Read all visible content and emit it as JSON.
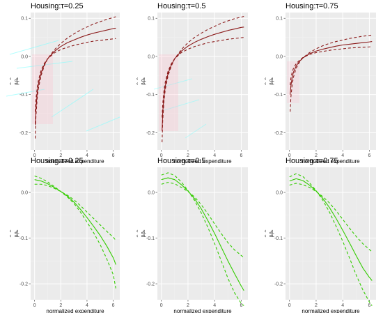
{
  "figure": {
    "x_axis_label": "normalized expenditure",
    "y_axis_label": "β̂_{k,τ}",
    "colors": {
      "panel_bg": "#ebebeb",
      "grid_major": "#ffffff",
      "grid_minor": "#f3f3f3",
      "dark_red": "#8b1a1a",
      "green": "#33cc00",
      "pink_smear": "#ffb6c8",
      "cyan_smear": "#7fffff"
    }
  },
  "chart_data": [
    {
      "type": "line",
      "title": "Housing:τ=0.25",
      "xlim": [
        -0.3,
        6.5
      ],
      "ylim": [
        -0.245,
        0.115
      ],
      "xticks": [
        0,
        2,
        4,
        6
      ],
      "yticks": [
        0.1,
        0.0,
        -0.1,
        -0.2
      ],
      "ytick_labels": [
        "0.1",
        "0.0",
        "-0.1",
        "-0.2"
      ],
      "color": "dark_red",
      "series": [
        {
          "style": "solid",
          "x": [
            0.05,
            0.1,
            0.2,
            0.3,
            0.5,
            0.75,
            1,
            1.5,
            2,
            2.5,
            3,
            3.5,
            4,
            4.5,
            5,
            5.5,
            6,
            6.2
          ],
          "values": [
            -0.18,
            -0.138,
            -0.096,
            -0.072,
            -0.043,
            -0.021,
            -0.006,
            0.013,
            0.026,
            0.036,
            0.043,
            0.05,
            0.056,
            0.061,
            0.065,
            0.069,
            0.073,
            0.074
          ]
        },
        {
          "style": "dashed",
          "x": [
            0.05,
            0.1,
            0.2,
            0.3,
            0.5,
            0.75,
            1,
            1.5,
            2,
            2.5,
            3,
            3.5,
            4,
            4.5,
            5,
            5.5,
            6,
            6.2
          ],
          "values": [
            -0.215,
            -0.16,
            -0.11,
            -0.082,
            -0.05,
            -0.024,
            -0.006,
            0.017,
            0.034,
            0.048,
            0.059,
            0.069,
            0.077,
            0.085,
            0.091,
            0.097,
            0.102,
            0.104
          ]
        },
        {
          "style": "dashed",
          "x": [
            0.05,
            0.1,
            0.2,
            0.3,
            0.5,
            0.75,
            1,
            1.5,
            2,
            2.5,
            3,
            3.5,
            4,
            4.5,
            5,
            5.5,
            6,
            6.2
          ],
          "values": [
            -0.145,
            -0.114,
            -0.082,
            -0.062,
            -0.036,
            -0.018,
            -0.006,
            0.009,
            0.018,
            0.024,
            0.029,
            0.033,
            0.037,
            0.04,
            0.042,
            0.044,
            0.046,
            0.047
          ]
        }
      ]
    },
    {
      "type": "line",
      "title": "Housing:τ=0.5",
      "xlim": [
        -0.3,
        6.5
      ],
      "ylim": [
        -0.245,
        0.115
      ],
      "xticks": [
        0,
        2,
        4,
        6
      ],
      "yticks": [
        0.1,
        0.0,
        -0.1,
        -0.2
      ],
      "ytick_labels": [
        "0.1",
        "0.0",
        "-0.1",
        "-0.2"
      ],
      "color": "dark_red",
      "series": [
        {
          "style": "solid",
          "x": [
            0.05,
            0.1,
            0.2,
            0.3,
            0.5,
            0.75,
            1,
            1.5,
            2,
            2.5,
            3,
            3.5,
            4,
            4.5,
            5,
            5.5,
            6,
            6.2
          ],
          "values": [
            -0.195,
            -0.148,
            -0.103,
            -0.076,
            -0.045,
            -0.022,
            -0.006,
            0.014,
            0.027,
            0.037,
            0.045,
            0.052,
            0.058,
            0.063,
            0.068,
            0.072,
            0.076,
            0.077
          ]
        },
        {
          "style": "dashed",
          "x": [
            0.05,
            0.1,
            0.2,
            0.3,
            0.5,
            0.75,
            1,
            1.5,
            2,
            2.5,
            3,
            3.5,
            4,
            4.5,
            5,
            5.5,
            6,
            6.2
          ],
          "values": [
            -0.225,
            -0.168,
            -0.115,
            -0.085,
            -0.051,
            -0.025,
            -0.006,
            0.018,
            0.036,
            0.05,
            0.061,
            0.071,
            0.079,
            0.087,
            0.093,
            0.099,
            0.103,
            0.105
          ]
        },
        {
          "style": "dashed",
          "x": [
            0.05,
            0.1,
            0.2,
            0.3,
            0.5,
            0.75,
            1,
            1.5,
            2,
            2.5,
            3,
            3.5,
            4,
            4.5,
            5,
            5.5,
            6,
            6.2
          ],
          "values": [
            -0.16,
            -0.125,
            -0.088,
            -0.066,
            -0.039,
            -0.019,
            -0.006,
            0.01,
            0.019,
            0.026,
            0.031,
            0.036,
            0.039,
            0.042,
            0.045,
            0.047,
            0.049,
            0.05
          ]
        }
      ]
    },
    {
      "type": "line",
      "title": "Housing:τ=0.75",
      "xlim": [
        -0.3,
        6.5
      ],
      "ylim": [
        -0.245,
        0.115
      ],
      "xticks": [
        0,
        2,
        4,
        6
      ],
      "yticks": [
        0.1,
        0.0,
        -0.1,
        -0.2
      ],
      "ytick_labels": [
        "0.1",
        "0.0",
        "-0.1",
        "-0.2"
      ],
      "color": "dark_red",
      "series": [
        {
          "style": "solid",
          "x": [
            0.05,
            0.1,
            0.2,
            0.3,
            0.5,
            0.75,
            1,
            1.5,
            2,
            2.5,
            3,
            3.5,
            4,
            4.5,
            5,
            5.5,
            6,
            6.2
          ],
          "values": [
            -0.1,
            -0.078,
            -0.055,
            -0.041,
            -0.025,
            -0.013,
            -0.004,
            0.007,
            0.014,
            0.019,
            0.023,
            0.027,
            0.03,
            0.032,
            0.034,
            0.036,
            0.038,
            0.039
          ]
        },
        {
          "style": "dashed",
          "x": [
            0.05,
            0.1,
            0.2,
            0.3,
            0.5,
            0.75,
            1,
            1.5,
            2,
            2.5,
            3,
            3.5,
            4,
            4.5,
            5,
            5.5,
            6,
            6.2
          ],
          "values": [
            -0.145,
            -0.108,
            -0.074,
            -0.054,
            -0.031,
            -0.015,
            -0.004,
            0.01,
            0.02,
            0.028,
            0.034,
            0.039,
            0.043,
            0.047,
            0.05,
            0.053,
            0.055,
            0.056
          ]
        },
        {
          "style": "dashed",
          "x": [
            0.05,
            0.1,
            0.2,
            0.3,
            0.5,
            0.75,
            1,
            1.5,
            2,
            2.5,
            3,
            3.5,
            4,
            4.5,
            5,
            5.5,
            6,
            6.2
          ],
          "values": [
            -0.075,
            -0.058,
            -0.041,
            -0.031,
            -0.019,
            -0.01,
            -0.003,
            0.005,
            0.01,
            0.013,
            0.016,
            0.018,
            0.02,
            0.022,
            0.023,
            0.024,
            0.025,
            0.026
          ]
        }
      ]
    },
    {
      "type": "line",
      "title": "Housing:τ=0.25",
      "xlim": [
        -0.3,
        6.5
      ],
      "ylim": [
        -0.235,
        0.055
      ],
      "xticks": [
        0,
        2,
        4,
        6
      ],
      "yticks": [
        0.0,
        -0.1,
        -0.2
      ],
      "ytick_labels": [
        "0.0",
        "-0.1",
        "-0.2"
      ],
      "color": "green",
      "series": [
        {
          "style": "solid",
          "x": [
            0,
            0.5,
            1,
            1.5,
            2,
            2.5,
            3,
            3.5,
            4,
            4.5,
            5,
            5.5,
            6,
            6.2
          ],
          "values": [
            0.028,
            0.025,
            0.019,
            0.011,
            0.002,
            -0.008,
            -0.021,
            -0.037,
            -0.055,
            -0.074,
            -0.094,
            -0.117,
            -0.143,
            -0.158
          ]
        },
        {
          "style": "dashed",
          "x": [
            0,
            0.5,
            1,
            1.5,
            2,
            2.5,
            3,
            3.5,
            4,
            4.5,
            5,
            5.5,
            6,
            6.2
          ],
          "values": [
            0.036,
            0.031,
            0.023,
            0.013,
            0.002,
            -0.01,
            -0.024,
            -0.043,
            -0.065,
            -0.088,
            -0.114,
            -0.145,
            -0.18,
            -0.21
          ]
        },
        {
          "style": "dashed",
          "x": [
            0,
            0.5,
            1,
            1.5,
            2,
            2.5,
            3,
            3.5,
            4,
            4.5,
            5,
            5.5,
            6,
            6.2
          ],
          "values": [
            0.018,
            0.018,
            0.015,
            0.009,
            0.002,
            -0.006,
            -0.016,
            -0.029,
            -0.043,
            -0.057,
            -0.071,
            -0.085,
            -0.098,
            -0.105
          ]
        }
      ]
    },
    {
      "type": "line",
      "title": "Housing:τ=0.5",
      "xlim": [
        -0.3,
        6.5
      ],
      "ylim": [
        -0.235,
        0.055
      ],
      "xticks": [
        0,
        2,
        4,
        6
      ],
      "yticks": [
        0.0,
        -0.1,
        -0.2
      ],
      "ytick_labels": [
        "0.0",
        "-0.1",
        "-0.2"
      ],
      "color": "green",
      "series": [
        {
          "style": "solid",
          "x": [
            0,
            0.5,
            1,
            1.5,
            2,
            2.5,
            3,
            3.5,
            4,
            4.5,
            5,
            5.5,
            6,
            6.2
          ],
          "values": [
            0.028,
            0.032,
            0.028,
            0.017,
            0.003,
            -0.014,
            -0.036,
            -0.062,
            -0.09,
            -0.12,
            -0.15,
            -0.178,
            -0.205,
            -0.215
          ]
        },
        {
          "style": "dashed",
          "x": [
            0,
            0.5,
            1,
            1.5,
            2,
            2.5,
            3,
            3.5,
            4,
            4.5,
            5,
            5.5,
            6,
            6.2
          ],
          "values": [
            0.038,
            0.043,
            0.037,
            0.023,
            0.004,
            -0.018,
            -0.045,
            -0.077,
            -0.112,
            -0.15,
            -0.188,
            -0.22,
            -0.243,
            -0.248
          ]
        },
        {
          "style": "dashed",
          "x": [
            0,
            0.5,
            1,
            1.5,
            2,
            2.5,
            3,
            3.5,
            4,
            4.5,
            5,
            5.5,
            6,
            6.2
          ],
          "values": [
            0.018,
            0.022,
            0.019,
            0.011,
            0.002,
            -0.01,
            -0.027,
            -0.047,
            -0.069,
            -0.09,
            -0.11,
            -0.126,
            -0.138,
            -0.143
          ]
        }
      ]
    },
    {
      "type": "line",
      "title": "Housing:τ=0.75",
      "xlim": [
        -0.3,
        6.5
      ],
      "ylim": [
        -0.235,
        0.055
      ],
      "xticks": [
        0,
        2,
        4,
        6
      ],
      "yticks": [
        0.0,
        -0.1,
        -0.2
      ],
      "ytick_labels": [
        "0.0",
        "-0.1",
        "-0.2"
      ],
      "color": "green",
      "series": [
        {
          "style": "solid",
          "x": [
            0,
            0.5,
            1,
            1.5,
            2,
            2.5,
            3,
            3.5,
            4,
            4.5,
            5,
            5.5,
            6,
            6.2
          ],
          "values": [
            0.025,
            0.03,
            0.026,
            0.016,
            0.003,
            -0.013,
            -0.033,
            -0.057,
            -0.083,
            -0.11,
            -0.138,
            -0.165,
            -0.186,
            -0.193
          ]
        },
        {
          "style": "dashed",
          "x": [
            0,
            0.5,
            1,
            1.5,
            2,
            2.5,
            3,
            3.5,
            4,
            4.5,
            5,
            5.5,
            6,
            6.2
          ],
          "values": [
            0.034,
            0.041,
            0.035,
            0.021,
            0.004,
            -0.017,
            -0.043,
            -0.074,
            -0.107,
            -0.143,
            -0.18,
            -0.213,
            -0.24,
            -0.248
          ]
        },
        {
          "style": "dashed",
          "x": [
            0,
            0.5,
            1,
            1.5,
            2,
            2.5,
            3,
            3.5,
            4,
            4.5,
            5,
            5.5,
            6,
            6.2
          ],
          "values": [
            0.016,
            0.02,
            0.017,
            0.011,
            0.002,
            -0.009,
            -0.023,
            -0.04,
            -0.059,
            -0.078,
            -0.096,
            -0.112,
            -0.125,
            -0.13
          ]
        }
      ]
    }
  ]
}
